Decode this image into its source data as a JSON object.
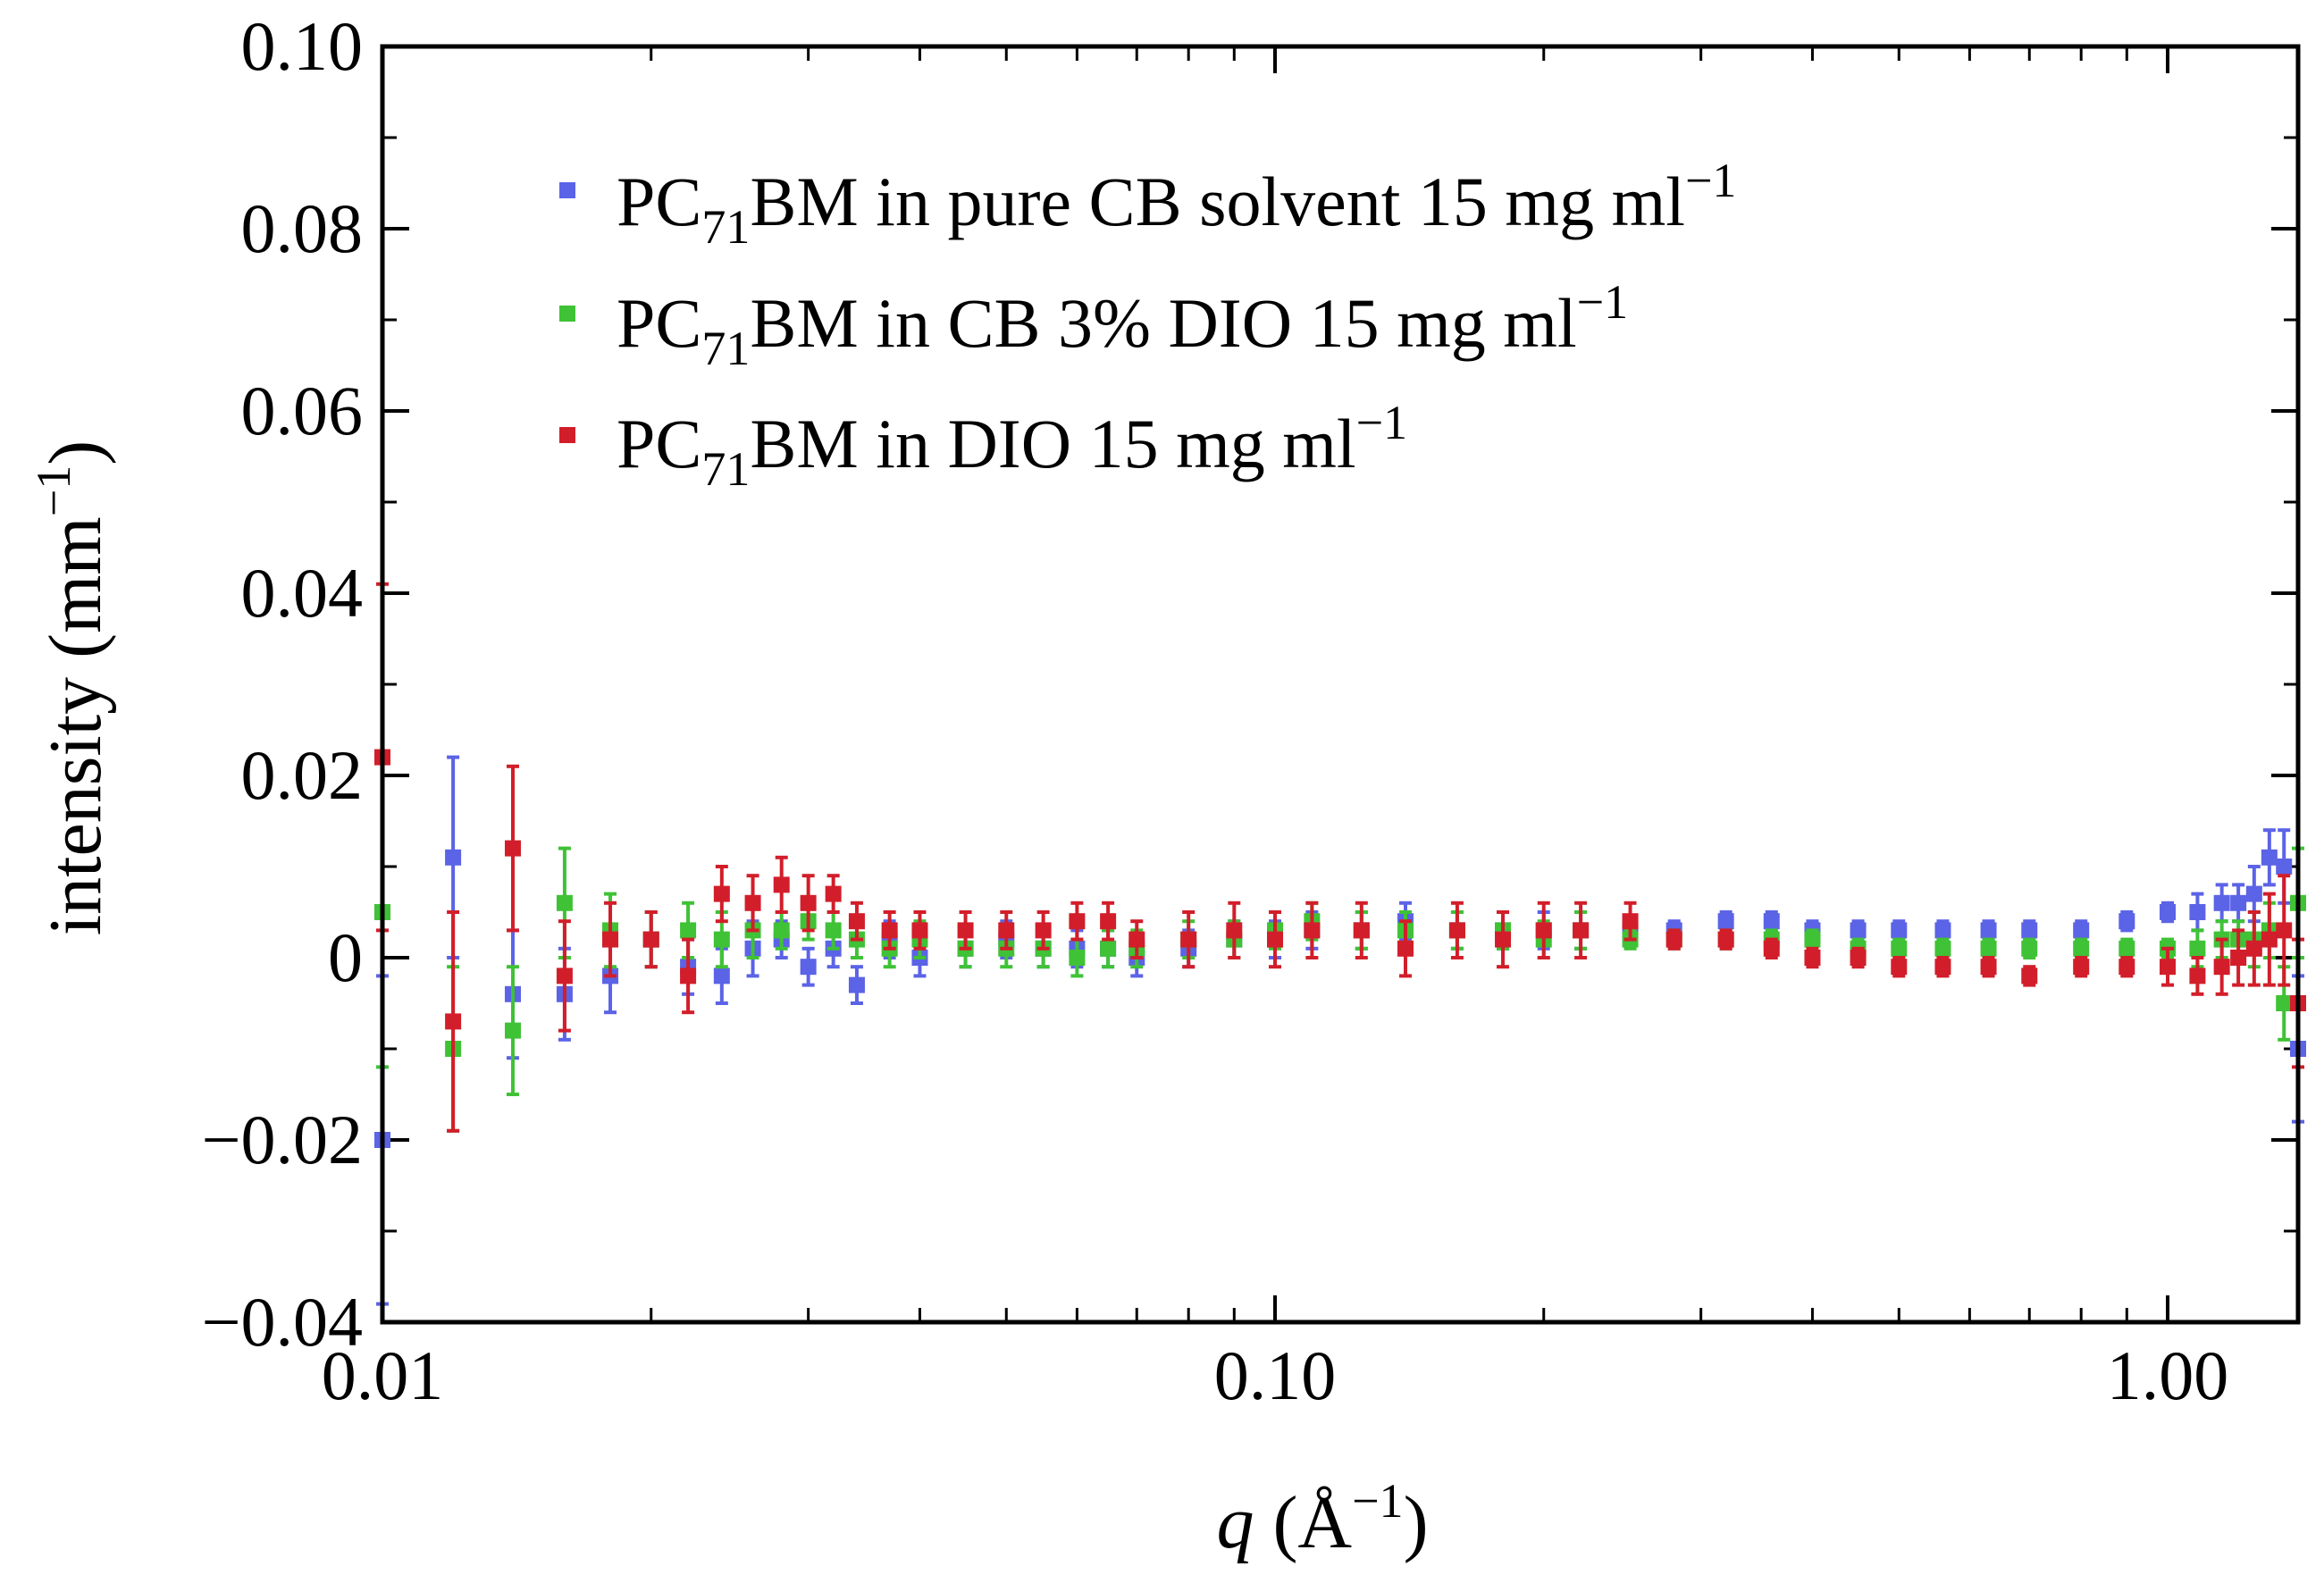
{
  "chart_data": {
    "type": "scatter",
    "xscale": "log",
    "xlim": [
      0.01,
      1.4
    ],
    "ylim": [
      -0.04,
      0.1
    ],
    "grid": false,
    "legend_position": "top-left",
    "xlabel": {
      "var": "q",
      "unit_pre": " (Å",
      "unit_sup": "−1",
      "unit_post": ")"
    },
    "ylabel": {
      "pre": "intensity (mm",
      "sup": "−1",
      "post": ")"
    },
    "yticks": [
      {
        "value": -0.04,
        "label": "−0.04"
      },
      {
        "value": -0.02,
        "label": "−0.02"
      },
      {
        "value": 0.0,
        "label": "0"
      },
      {
        "value": 0.02,
        "label": "0.02"
      },
      {
        "value": 0.04,
        "label": "0.04"
      },
      {
        "value": 0.06,
        "label": "0.06"
      },
      {
        "value": 0.08,
        "label": "0.08"
      },
      {
        "value": 0.1,
        "label": "0.10"
      }
    ],
    "xticks": [
      {
        "value": 0.01,
        "label": "0.01"
      },
      {
        "value": 0.1,
        "label": "0.10"
      },
      {
        "value": 1.0,
        "label": "1.00"
      }
    ],
    "series": [
      {
        "name": "PC71BM in pure CB solvent 15 mg ml−1",
        "legend": {
          "pre": "PC",
          "sub": "71",
          "mid": "BM in pure CB solvent 15 mg ml",
          "sup": "−1"
        },
        "color": "#5b63e6",
        "x": [
          0.01,
          0.012,
          0.014,
          0.016,
          0.018,
          0.02,
          0.022,
          0.024,
          0.026,
          0.028,
          0.03,
          0.032,
          0.034,
          0.037,
          0.04,
          0.045,
          0.05,
          0.055,
          0.06,
          0.065,
          0.07,
          0.08,
          0.09,
          0.1,
          0.11,
          0.125,
          0.14,
          0.16,
          0.18,
          0.2,
          0.22,
          0.25,
          0.28,
          0.32,
          0.36,
          0.4,
          0.45,
          0.5,
          0.56,
          0.63,
          0.7,
          0.8,
          0.9,
          1.0,
          1.08,
          1.15,
          1.2,
          1.25,
          1.3,
          1.35,
          1.4
        ],
        "y": [
          -0.02,
          0.011,
          -0.004,
          -0.004,
          -0.002,
          0.002,
          -0.001,
          -0.002,
          0.001,
          0.002,
          -0.001,
          0.001,
          -0.003,
          0.002,
          0.0,
          0.001,
          0.002,
          0.001,
          0.001,
          0.001,
          0.0,
          0.001,
          0.002,
          0.002,
          0.003,
          0.003,
          0.004,
          0.003,
          0.003,
          0.003,
          0.003,
          0.003,
          0.003,
          0.004,
          0.004,
          0.003,
          0.003,
          0.003,
          0.003,
          0.003,
          0.003,
          0.003,
          0.004,
          0.005,
          0.005,
          0.006,
          0.006,
          0.007,
          0.011,
          0.01,
          -0.01
        ],
        "err": [
          0.018,
          0.011,
          0.007,
          0.005,
          0.004,
          0.003,
          0.003,
          0.003,
          0.003,
          0.002,
          0.002,
          0.002,
          0.002,
          0.002,
          0.002,
          0.002,
          0.002,
          0.002,
          0.002,
          0.002,
          0.002,
          0.002,
          0.002,
          0.002,
          0.002,
          0.002,
          0.002,
          0.002,
          0.002,
          0.002,
          0.002,
          0.001,
          0.001,
          0.001,
          0.001,
          0.001,
          0.001,
          0.001,
          0.001,
          0.001,
          0.001,
          0.001,
          0.001,
          0.001,
          0.002,
          0.002,
          0.002,
          0.003,
          0.003,
          0.004,
          0.008
        ]
      },
      {
        "name": "PC71BM in CB 3% DIO 15 mg ml−1",
        "legend": {
          "pre": "PC",
          "sub": "71",
          "mid": "BM in CB 3% DIO 15 mg ml",
          "sup": "−1"
        },
        "color": "#3fc236",
        "x": [
          0.01,
          0.012,
          0.014,
          0.016,
          0.018,
          0.02,
          0.022,
          0.024,
          0.026,
          0.028,
          0.03,
          0.032,
          0.034,
          0.037,
          0.04,
          0.045,
          0.05,
          0.055,
          0.06,
          0.065,
          0.07,
          0.08,
          0.09,
          0.1,
          0.11,
          0.125,
          0.14,
          0.16,
          0.18,
          0.2,
          0.22,
          0.25,
          0.28,
          0.32,
          0.36,
          0.4,
          0.45,
          0.5,
          0.56,
          0.63,
          0.7,
          0.8,
          0.9,
          1.0,
          1.08,
          1.15,
          1.2,
          1.25,
          1.3,
          1.35,
          1.4
        ],
        "y": [
          0.005,
          -0.01,
          -0.008,
          0.006,
          0.003,
          0.002,
          0.003,
          0.002,
          0.003,
          0.003,
          0.004,
          0.003,
          0.002,
          0.001,
          0.002,
          0.001,
          0.001,
          0.001,
          0.0,
          0.001,
          0.001,
          0.002,
          0.002,
          0.003,
          0.004,
          0.003,
          0.003,
          0.003,
          0.003,
          0.002,
          0.003,
          0.002,
          0.002,
          0.002,
          0.002,
          0.002,
          0.001,
          0.001,
          0.001,
          0.001,
          0.001,
          0.001,
          0.001,
          0.001,
          0.001,
          0.002,
          0.002,
          0.002,
          0.003,
          -0.005,
          0.006
        ],
        "err": [
          0.017,
          0.009,
          0.007,
          0.006,
          0.004,
          0.003,
          0.003,
          0.003,
          0.003,
          0.002,
          0.002,
          0.002,
          0.002,
          0.002,
          0.002,
          0.002,
          0.002,
          0.002,
          0.002,
          0.002,
          0.002,
          0.002,
          0.002,
          0.002,
          0.002,
          0.002,
          0.002,
          0.002,
          0.002,
          0.002,
          0.002,
          0.001,
          0.001,
          0.001,
          0.001,
          0.001,
          0.001,
          0.001,
          0.001,
          0.001,
          0.001,
          0.001,
          0.001,
          0.001,
          0.002,
          0.002,
          0.002,
          0.003,
          0.003,
          0.004,
          0.006
        ]
      },
      {
        "name": "PC71BM in DIO 15 mg ml−1",
        "legend": {
          "pre": "PC",
          "sub": "71",
          "mid": "BM in DIO 15 mg ml",
          "sup": "−1"
        },
        "color": "#d21e2a",
        "x": [
          0.01,
          0.012,
          0.014,
          0.016,
          0.018,
          0.02,
          0.022,
          0.024,
          0.026,
          0.028,
          0.03,
          0.032,
          0.034,
          0.037,
          0.04,
          0.045,
          0.05,
          0.055,
          0.06,
          0.065,
          0.07,
          0.08,
          0.09,
          0.1,
          0.11,
          0.125,
          0.14,
          0.16,
          0.18,
          0.2,
          0.22,
          0.25,
          0.28,
          0.32,
          0.36,
          0.4,
          0.45,
          0.5,
          0.56,
          0.63,
          0.7,
          0.8,
          0.9,
          1.0,
          1.08,
          1.15,
          1.2,
          1.25,
          1.3,
          1.35,
          1.4
        ],
        "y": [
          0.022,
          -0.007,
          0.012,
          -0.002,
          0.002,
          0.002,
          -0.002,
          0.007,
          0.006,
          0.008,
          0.006,
          0.007,
          0.004,
          0.003,
          0.003,
          0.003,
          0.003,
          0.003,
          0.004,
          0.004,
          0.002,
          0.002,
          0.003,
          0.002,
          0.003,
          0.003,
          0.001,
          0.003,
          0.002,
          0.003,
          0.003,
          0.004,
          0.002,
          0.002,
          0.001,
          0.0,
          0.0,
          -0.001,
          -0.001,
          -0.001,
          -0.002,
          -0.001,
          -0.001,
          -0.001,
          -0.002,
          -0.001,
          0.0,
          0.001,
          0.002,
          0.003,
          -0.005
        ],
        "err": [
          0.019,
          0.012,
          0.009,
          0.006,
          0.004,
          0.003,
          0.004,
          0.003,
          0.003,
          0.003,
          0.003,
          0.002,
          0.002,
          0.002,
          0.002,
          0.002,
          0.002,
          0.002,
          0.002,
          0.002,
          0.002,
          0.003,
          0.003,
          0.003,
          0.003,
          0.003,
          0.003,
          0.003,
          0.003,
          0.003,
          0.003,
          0.002,
          0.001,
          0.001,
          0.001,
          0.001,
          0.001,
          0.001,
          0.001,
          0.001,
          0.001,
          0.001,
          0.001,
          0.002,
          0.002,
          0.003,
          0.003,
          0.004,
          0.005,
          0.006,
          0.007
        ]
      }
    ]
  }
}
